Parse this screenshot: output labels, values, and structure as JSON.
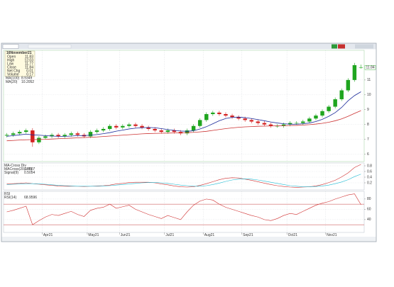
{
  "chart_data": [
    {
      "type": "candlestick",
      "categories": [
        null,
        null,
        null,
        null,
        null,
        null,
        "Apr21",
        null,
        null,
        null,
        null,
        null,
        null,
        "May21",
        null,
        null,
        null,
        null,
        "Jun21",
        null,
        null,
        null,
        null,
        null,
        null,
        "Jul21",
        null,
        null,
        null,
        null,
        null,
        "Aug21",
        null,
        null,
        null,
        null,
        null,
        "Sep21",
        null,
        null,
        null,
        null,
        null,
        null,
        "Oct21",
        null,
        null,
        null,
        null,
        null,
        "Nov21",
        null,
        null,
        null,
        null,
        null
      ],
      "open": [
        7.25,
        7.3,
        7.4,
        7.5,
        7.6,
        6.8,
        7.1,
        7.2,
        7.3,
        7.2,
        7.3,
        7.4,
        7.3,
        7.2,
        7.5,
        7.6,
        7.7,
        7.9,
        7.8,
        7.9,
        8.0,
        7.9,
        7.8,
        7.7,
        7.6,
        7.5,
        7.6,
        7.5,
        7.4,
        7.6,
        7.9,
        8.3,
        8.7,
        8.8,
        8.7,
        8.6,
        8.5,
        8.4,
        8.3,
        8.2,
        8.1,
        8.0,
        7.9,
        7.9,
        8.0,
        8.1,
        8.1,
        8.2,
        8.4,
        8.6,
        8.9,
        9.2,
        9.7,
        10.3,
        11.0,
        11.83
      ],
      "high": [
        7.42,
        7.52,
        7.62,
        7.72,
        7.75,
        7.22,
        7.32,
        7.42,
        7.42,
        7.42,
        7.52,
        7.52,
        7.42,
        7.62,
        7.72,
        7.82,
        8.02,
        8.02,
        8.02,
        8.12,
        8.12,
        8.02,
        7.92,
        7.82,
        7.72,
        7.72,
        7.72,
        7.62,
        7.72,
        8.02,
        8.42,
        8.82,
        8.92,
        8.92,
        8.82,
        8.72,
        8.62,
        8.52,
        8.42,
        8.32,
        8.22,
        8.12,
        8.02,
        8.12,
        8.22,
        8.22,
        8.32,
        8.52,
        8.72,
        9.02,
        9.32,
        9.82,
        10.42,
        11.12,
        12.15,
        12.03
      ],
      "low": [
        7.13,
        7.18,
        7.28,
        7.38,
        6.5,
        6.68,
        6.98,
        7.08,
        7.08,
        7.08,
        7.18,
        7.18,
        7.08,
        7.08,
        7.38,
        7.48,
        7.58,
        7.68,
        7.68,
        7.78,
        7.78,
        7.68,
        7.58,
        7.48,
        7.38,
        7.38,
        7.38,
        7.28,
        7.28,
        7.48,
        7.78,
        8.18,
        8.58,
        8.58,
        8.48,
        8.38,
        8.28,
        8.18,
        8.08,
        7.98,
        7.88,
        7.78,
        7.78,
        7.78,
        7.88,
        7.98,
        7.98,
        8.08,
        8.28,
        8.48,
        8.78,
        9.08,
        9.58,
        10.18,
        10.88,
        11.77
      ],
      "close": [
        7.3,
        7.4,
        7.5,
        7.6,
        6.8,
        7.1,
        7.2,
        7.3,
        7.2,
        7.3,
        7.4,
        7.3,
        7.2,
        7.5,
        7.6,
        7.7,
        7.9,
        7.8,
        7.9,
        8.0,
        7.9,
        7.8,
        7.7,
        7.6,
        7.5,
        7.6,
        7.5,
        7.4,
        7.6,
        7.9,
        8.3,
        8.7,
        8.8,
        8.7,
        8.6,
        8.5,
        8.4,
        8.3,
        8.2,
        8.1,
        8.0,
        7.9,
        7.9,
        8.0,
        8.1,
        8.1,
        8.2,
        8.4,
        8.6,
        8.9,
        9.2,
        9.7,
        10.3,
        11.0,
        12.0,
        11.84
      ],
      "up_color": "#1fa51f",
      "down_color": "#d42020",
      "series": [
        {
          "name": "MA(100)",
          "color": "#cc3333",
          "values": [
            6.9,
            6.92,
            6.95,
            6.97,
            6.98,
            6.99,
            7.0,
            7.02,
            7.04,
            7.06,
            7.08,
            7.1,
            7.12,
            7.14,
            7.16,
            7.19,
            7.22,
            7.25,
            7.28,
            7.31,
            7.34,
            7.37,
            7.39,
            7.4,
            7.41,
            7.42,
            7.43,
            7.44,
            7.45,
            7.47,
            7.5,
            7.54,
            7.6,
            7.66,
            7.72,
            7.77,
            7.81,
            7.84,
            7.86,
            7.88,
            7.89,
            7.9,
            7.91,
            7.92,
            7.93,
            7.94,
            7.96,
            7.99,
            8.03,
            8.08,
            8.15,
            8.25,
            8.38,
            8.55,
            8.75,
            8.9349
          ]
        },
        {
          "name": "MA(20)",
          "color": "#1a2a9a",
          "values": [
            7.2,
            7.25,
            7.3,
            7.35,
            7.3,
            7.28,
            7.25,
            7.22,
            7.2,
            7.2,
            7.22,
            7.25,
            7.25,
            7.28,
            7.32,
            7.38,
            7.45,
            7.55,
            7.62,
            7.7,
            7.75,
            7.78,
            7.8,
            7.78,
            7.72,
            7.66,
            7.6,
            7.56,
            7.54,
            7.58,
            7.7,
            7.85,
            8.05,
            8.25,
            8.4,
            8.48,
            8.5,
            8.46,
            8.4,
            8.33,
            8.25,
            8.17,
            8.1,
            8.05,
            8.02,
            8.02,
            8.05,
            8.1,
            8.2,
            8.35,
            8.55,
            8.8,
            9.15,
            9.6,
            9.95,
            10.2052
          ]
        }
      ],
      "ylim": [
        5.5,
        13
      ],
      "yticks": [
        6,
        7,
        8,
        9,
        10,
        11
      ],
      "grid": true,
      "info": {
        "title": "16November21",
        "rows": [
          {
            "label": "Open",
            "value": 11.83
          },
          {
            "label": "High",
            "value": 12.03
          },
          {
            "label": "Low",
            "value": 11.77
          },
          {
            "label": "Close",
            "value": 11.84
          },
          {
            "label": "Net Chg",
            "value": 0.01
          },
          {
            "label": "Volume",
            "value": 0.17
          }
        ]
      }
    },
    {
      "type": "line",
      "title": "MA-Cross Div",
      "series": [
        {
          "name": "MACross(20,100)",
          "color": "#d03030",
          "values": [
            0.16,
            0.17,
            0.18,
            0.2,
            0.17,
            0.15,
            0.13,
            0.11,
            0.09,
            0.08,
            0.08,
            0.08,
            0.07,
            0.08,
            0.09,
            0.1,
            0.12,
            0.16,
            0.18,
            0.21,
            0.22,
            0.22,
            0.22,
            0.2,
            0.16,
            0.13,
            0.09,
            0.06,
            0.05,
            0.06,
            0.11,
            0.17,
            0.24,
            0.31,
            0.36,
            0.38,
            0.37,
            0.33,
            0.29,
            0.24,
            0.19,
            0.14,
            0.1,
            0.07,
            0.05,
            0.04,
            0.05,
            0.06,
            0.09,
            0.14,
            0.21,
            0.29,
            0.41,
            0.55,
            0.74,
            0.8507
          ]
        },
        {
          "name": "Signal(9)",
          "color": "#22bcd4",
          "values": [
            0.14,
            0.15,
            0.16,
            0.17,
            0.17,
            0.16,
            0.15,
            0.13,
            0.11,
            0.1,
            0.09,
            0.08,
            0.08,
            0.08,
            0.08,
            0.09,
            0.1,
            0.12,
            0.14,
            0.16,
            0.18,
            0.2,
            0.21,
            0.21,
            0.2,
            0.18,
            0.15,
            0.12,
            0.1,
            0.08,
            0.08,
            0.1,
            0.14,
            0.19,
            0.25,
            0.3,
            0.33,
            0.34,
            0.33,
            0.3,
            0.26,
            0.22,
            0.18,
            0.14,
            0.1,
            0.08,
            0.06,
            0.06,
            0.07,
            0.09,
            0.12,
            0.17,
            0.23,
            0.31,
            0.42,
            0.5054
          ]
        }
      ],
      "ylim": [
        -0.05,
        0.9
      ],
      "yticks": [
        0.2,
        0.4,
        0.6,
        0.8
      ],
      "grid": true
    },
    {
      "type": "line",
      "title": "RSI",
      "series": [
        {
          "name": "RSI(14)",
          "color": "#d03030",
          "values": [
            55,
            58,
            62,
            66,
            30,
            38,
            45,
            50,
            48,
            52,
            56,
            50,
            46,
            58,
            62,
            64,
            70,
            62,
            65,
            68,
            60,
            55,
            50,
            46,
            42,
            48,
            44,
            40,
            55,
            68,
            76,
            80,
            78,
            70,
            64,
            60,
            56,
            52,
            48,
            45,
            40,
            38,
            42,
            48,
            52,
            50,
            56,
            62,
            68,
            72,
            75,
            80,
            84,
            88,
            90,
            68.9596
          ]
        }
      ],
      "hlines": [
        70,
        30
      ],
      "hline_color": "#c23b3b",
      "ylim": [
        15,
        95
      ],
      "yticks": [
        40,
        60,
        80
      ],
      "grid": true
    }
  ]
}
